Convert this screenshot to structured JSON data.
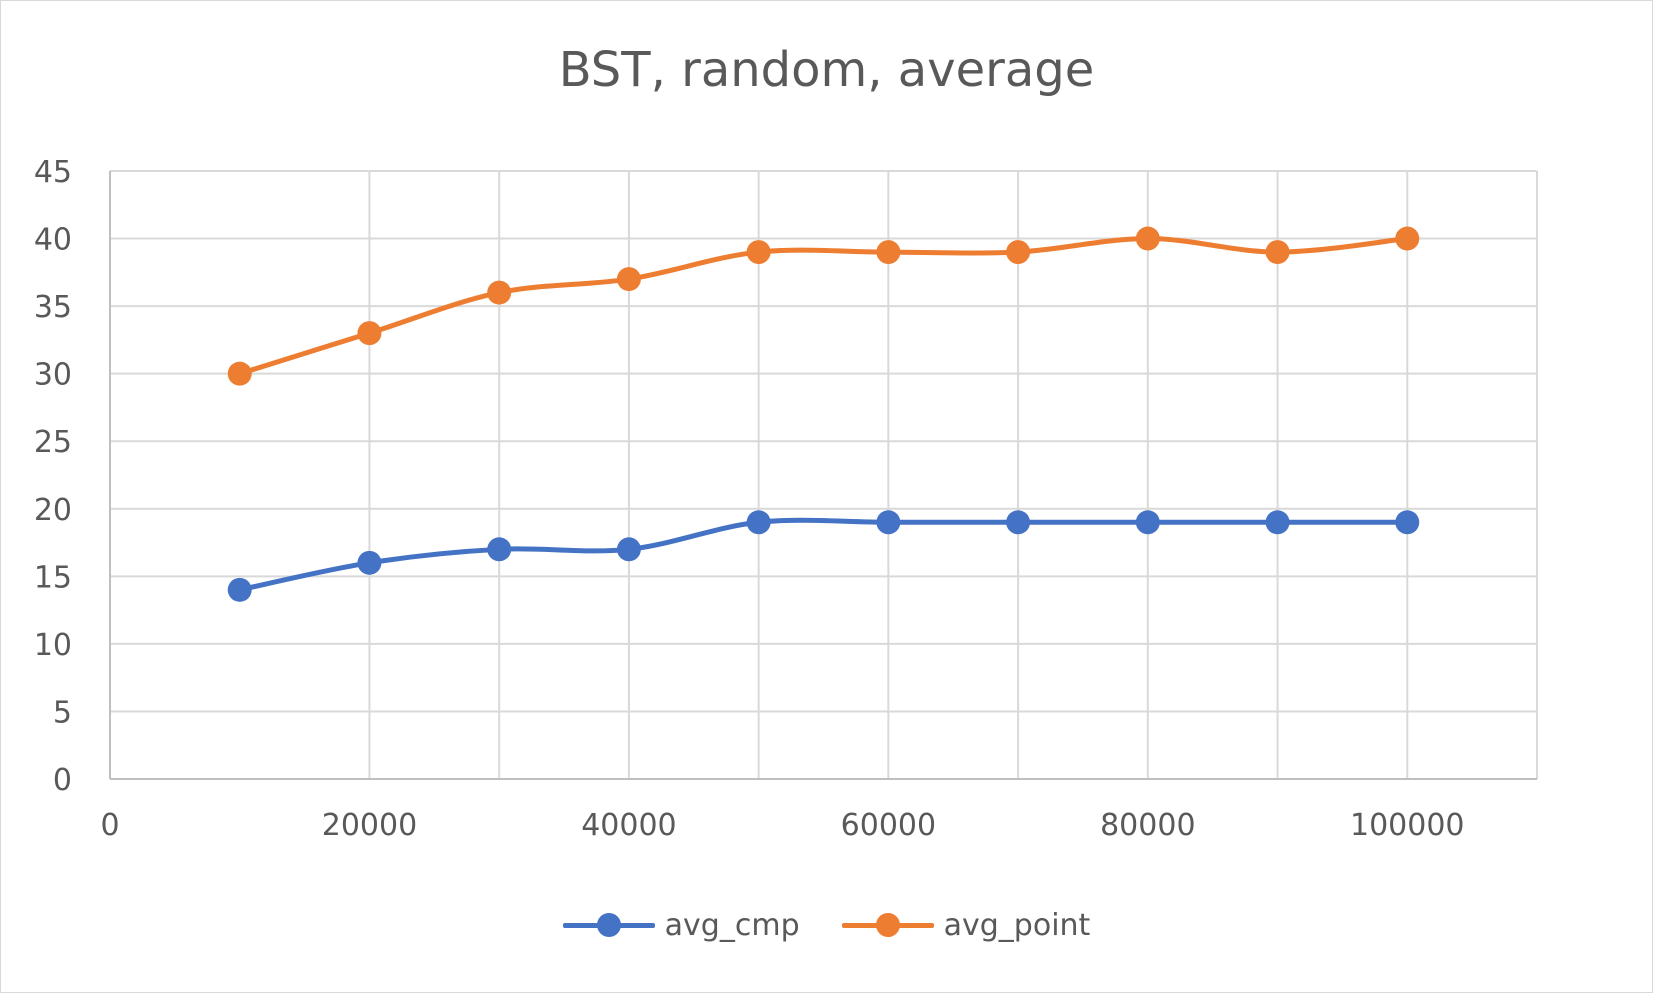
{
  "chart_data": {
    "type": "line",
    "title": "BST, random, average",
    "xlim": [
      0,
      110000
    ],
    "ylim": [
      0,
      45
    ],
    "x_ticks": [
      0,
      20000,
      40000,
      60000,
      80000,
      100000
    ],
    "y_ticks": [
      0,
      5,
      10,
      15,
      20,
      25,
      30,
      35,
      40,
      45
    ],
    "x_tick_labels": [
      "0",
      "20000",
      "40000",
      "60000",
      "80000",
      "100000"
    ],
    "y_tick_labels": [
      "0",
      "5",
      "10",
      "15",
      "20",
      "25",
      "30",
      "35",
      "40",
      "45"
    ],
    "grid": true,
    "smooth": true,
    "legend_position": "bottom",
    "x": [
      10000,
      20000,
      30000,
      40000,
      50000,
      60000,
      70000,
      80000,
      90000,
      100000
    ],
    "series": [
      {
        "name": "avg_cmp",
        "color": "#4472c4",
        "values": [
          14,
          16,
          17,
          17,
          19,
          19,
          19,
          19,
          19,
          19
        ]
      },
      {
        "name": "avg_point",
        "color": "#ed7d31",
        "values": [
          30,
          33,
          36,
          37,
          39,
          39,
          39,
          40,
          39,
          40
        ]
      }
    ]
  }
}
